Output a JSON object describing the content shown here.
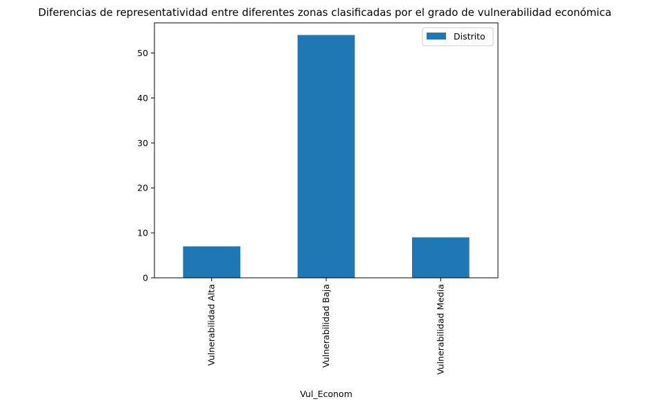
{
  "chart_data": {
    "type": "bar",
    "title": "Diferencias de representatividad entre diferentes zonas clasificadas por el grado de vulnerabilidad económica",
    "xlabel": "Vul_Econom",
    "ylabel": "",
    "categories": [
      "Vulnerabilidad Alta",
      "Vulnerabilidad Baja",
      "Vulnerabilidad Media"
    ],
    "series": [
      {
        "name": "Distrito",
        "values": [
          7,
          54,
          9
        ],
        "color": "#1f77b4"
      }
    ],
    "ylim": [
      0,
      56.7
    ],
    "yticks": [
      0,
      10,
      20,
      30,
      40,
      50
    ],
    "grid": false,
    "legend_position": "top-right"
  }
}
